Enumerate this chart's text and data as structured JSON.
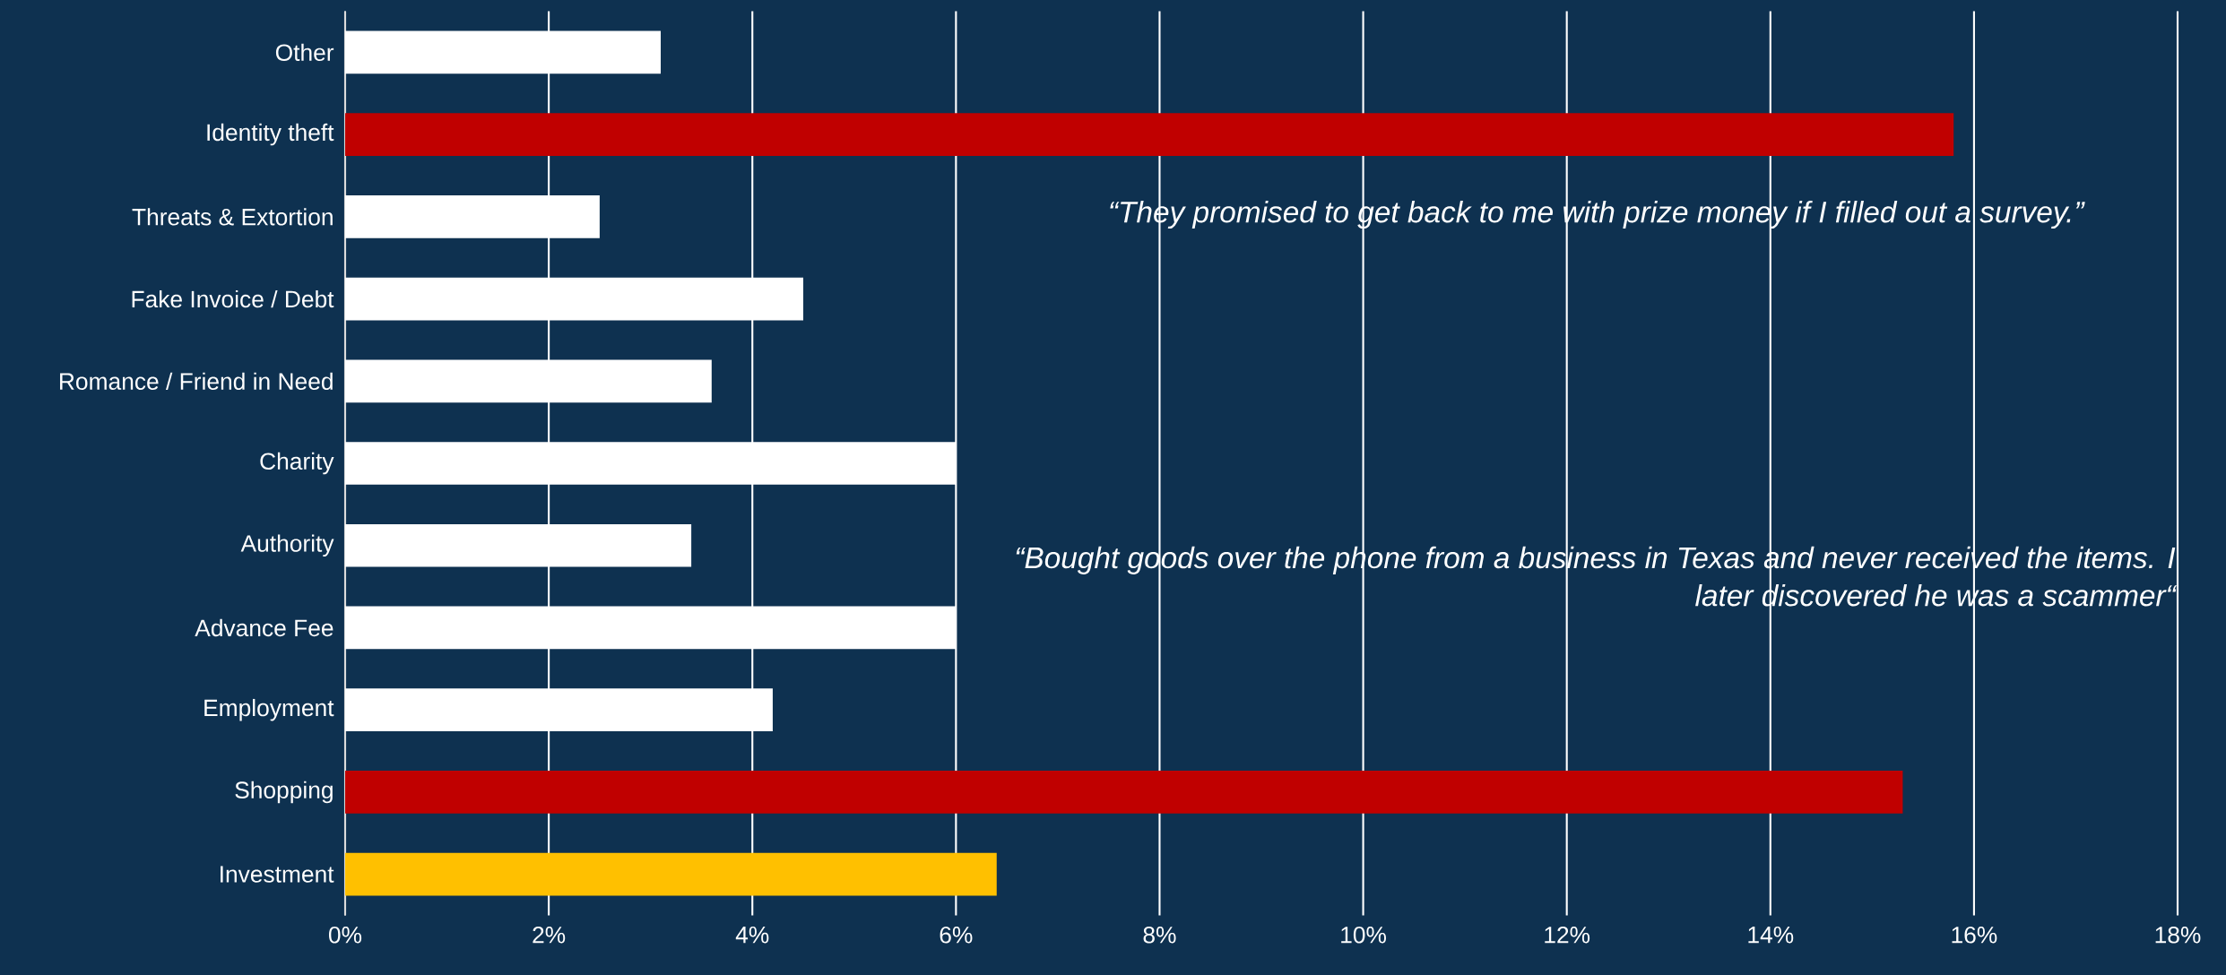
{
  "chart_data": {
    "type": "bar",
    "orientation": "horizontal",
    "categories": [
      "Other",
      "Identity theft",
      "Threats & Extortion",
      "Fake Invoice / Debt",
      "Romance / Friend in Need",
      "Charity",
      "Authority",
      "Advance Fee",
      "Employment",
      "Shopping",
      "Investment"
    ],
    "values": [
      3.1,
      15.8,
      2.5,
      4.5,
      3.6,
      6.0,
      3.4,
      6.0,
      4.2,
      15.3,
      6.4
    ],
    "colors": [
      "#ffffff",
      "#c00000",
      "#ffffff",
      "#ffffff",
      "#ffffff",
      "#ffffff",
      "#ffffff",
      "#ffffff",
      "#ffffff",
      "#c00000",
      "#ffc000"
    ],
    "xlim": [
      0,
      18
    ],
    "xticks": [
      {
        "value": 0,
        "label": "0%"
      },
      {
        "value": 2,
        "label": "2%"
      },
      {
        "value": 4,
        "label": "4%"
      },
      {
        "value": 6,
        "label": "6%"
      },
      {
        "value": 8,
        "label": "8%"
      },
      {
        "value": 10,
        "label": "10%"
      },
      {
        "value": 12,
        "label": "12%"
      },
      {
        "value": 14,
        "label": "14%"
      },
      {
        "value": 16,
        "label": "16%"
      },
      {
        "value": 18,
        "label": "18%"
      }
    ],
    "grid": "x",
    "annotations": [
      "“They promised to get back to me with prize money if I filled out a survey.”",
      "“Bought goods over the phone from a business in Texas and never received the items. I later discovered he was a scammer“"
    ]
  }
}
